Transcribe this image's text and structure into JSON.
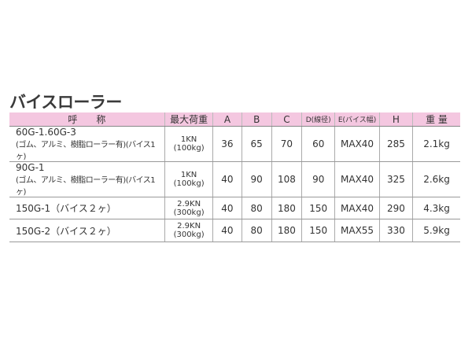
{
  "title": "バイスローラー",
  "headers": [
    "呼　　称",
    "最大荷重",
    "A",
    "B",
    "C",
    "D(線径)",
    "E(バイス幅)",
    "H",
    "重 量"
  ],
  "rows": [
    {
      "name": "60G-1.60G-3",
      "name_sub": "(ゴム、アルミ、樹脂ローラー有)(バイス1ヶ)",
      "load": "1KN",
      "load_kg": "(100kg)",
      "A": "36",
      "B": "65",
      "C": "70",
      "D": "60",
      "E": "MAX40",
      "H": "285",
      "weight": "2.1kg"
    },
    {
      "name": "90G-1",
      "name_sub": "(ゴム、アルミ、樹脂ローラー有)(バイス1ヶ)",
      "load": "1KN",
      "load_kg": "(100kg)",
      "A": "40",
      "B": "90",
      "C": "108",
      "D": "90",
      "E": "MAX40",
      "H": "325",
      "weight": "2.6kg"
    },
    {
      "name": "150G-1（バイス２ヶ）",
      "load": "2.9KN",
      "load_kg": "(300kg)",
      "A": "40",
      "B": "80",
      "C": "180",
      "D": "150",
      "E": "MAX40",
      "H": "290",
      "weight": "4.3kg"
    },
    {
      "name": "150G-2（バイス２ヶ）",
      "load": "2.9KN",
      "load_kg": "(300kg)",
      "A": "40",
      "B": "80",
      "C": "180",
      "D": "150",
      "E": "MAX55",
      "H": "330",
      "weight": "5.9kg"
    }
  ],
  "colors": {
    "header_bg": "#f4c7e0"
  }
}
